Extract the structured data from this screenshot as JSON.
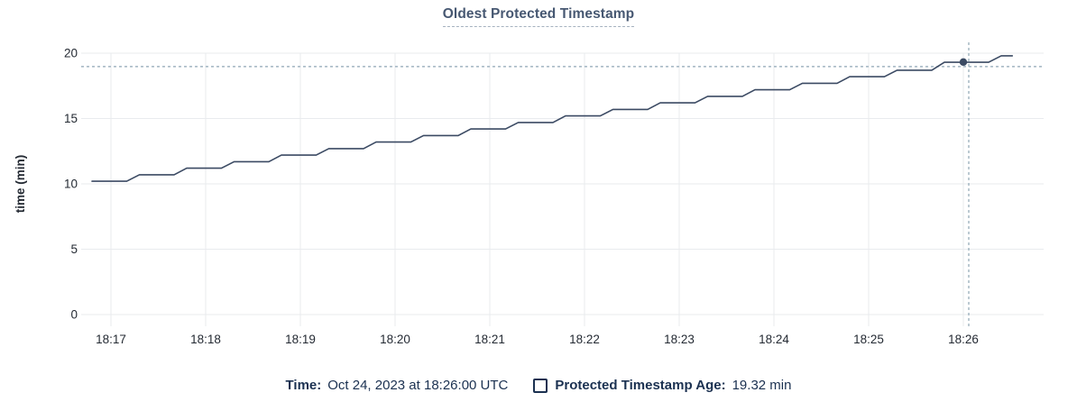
{
  "title": "Oldest Protected Timestamp",
  "colors": {
    "line": "#3b4a63",
    "title": "#475872",
    "axis_text": "#242a33",
    "grid": "#e9ebee",
    "crosshair": "#8fa6b5",
    "footer_text": "#1b3151",
    "background": "#ffffff"
  },
  "chart_data": {
    "type": "line",
    "title": "Oldest Protected Timestamp",
    "xlabel": "",
    "ylabel": "time (min)",
    "x_tick_labels": [
      "18:17",
      "18:18",
      "18:19",
      "18:20",
      "18:21",
      "18:22",
      "18:23",
      "18:24",
      "18:25",
      "18:26"
    ],
    "x_unit_note": "point times are seconds relative to 18:17:00",
    "y_ticks": [
      0,
      5,
      10,
      15,
      20
    ],
    "ylim": [
      0,
      20
    ],
    "grid": true,
    "legend_position": "bottom",
    "series": [
      {
        "name": "Protected Timestamp Age",
        "unit": "min",
        "points": [
          [
            -12,
            10.2
          ],
          [
            10,
            10.2
          ],
          [
            18,
            10.7
          ],
          [
            40,
            10.7
          ],
          [
            48,
            11.2
          ],
          [
            70,
            11.2
          ],
          [
            78,
            11.7
          ],
          [
            100,
            11.7
          ],
          [
            108,
            12.2
          ],
          [
            130,
            12.2
          ],
          [
            138,
            12.7
          ],
          [
            160,
            12.7
          ],
          [
            168,
            13.2
          ],
          [
            190,
            13.2
          ],
          [
            198,
            13.7
          ],
          [
            220,
            13.7
          ],
          [
            228,
            14.2
          ],
          [
            250,
            14.2
          ],
          [
            258,
            14.7
          ],
          [
            280,
            14.7
          ],
          [
            288,
            15.2
          ],
          [
            310,
            15.2
          ],
          [
            318,
            15.7
          ],
          [
            340,
            15.7
          ],
          [
            348,
            16.2
          ],
          [
            370,
            16.2
          ],
          [
            378,
            16.7
          ],
          [
            400,
            16.7
          ],
          [
            408,
            17.2
          ],
          [
            430,
            17.2
          ],
          [
            438,
            17.7
          ],
          [
            460,
            17.7
          ],
          [
            468,
            18.2
          ],
          [
            490,
            18.2
          ],
          [
            498,
            18.7
          ],
          [
            520,
            18.7
          ],
          [
            528,
            19.3
          ],
          [
            556,
            19.3
          ],
          [
            564,
            19.8
          ],
          [
            571,
            19.8
          ]
        ]
      }
    ],
    "hover_point": {
      "time": "18:26:00",
      "t": 540,
      "value": 19.32
    }
  },
  "footer": {
    "time_label": "Time:",
    "time_value": "Oct 24, 2023 at 18:26:00 UTC",
    "series_label": "Protected Timestamp Age:",
    "series_value": "19.32 min"
  }
}
